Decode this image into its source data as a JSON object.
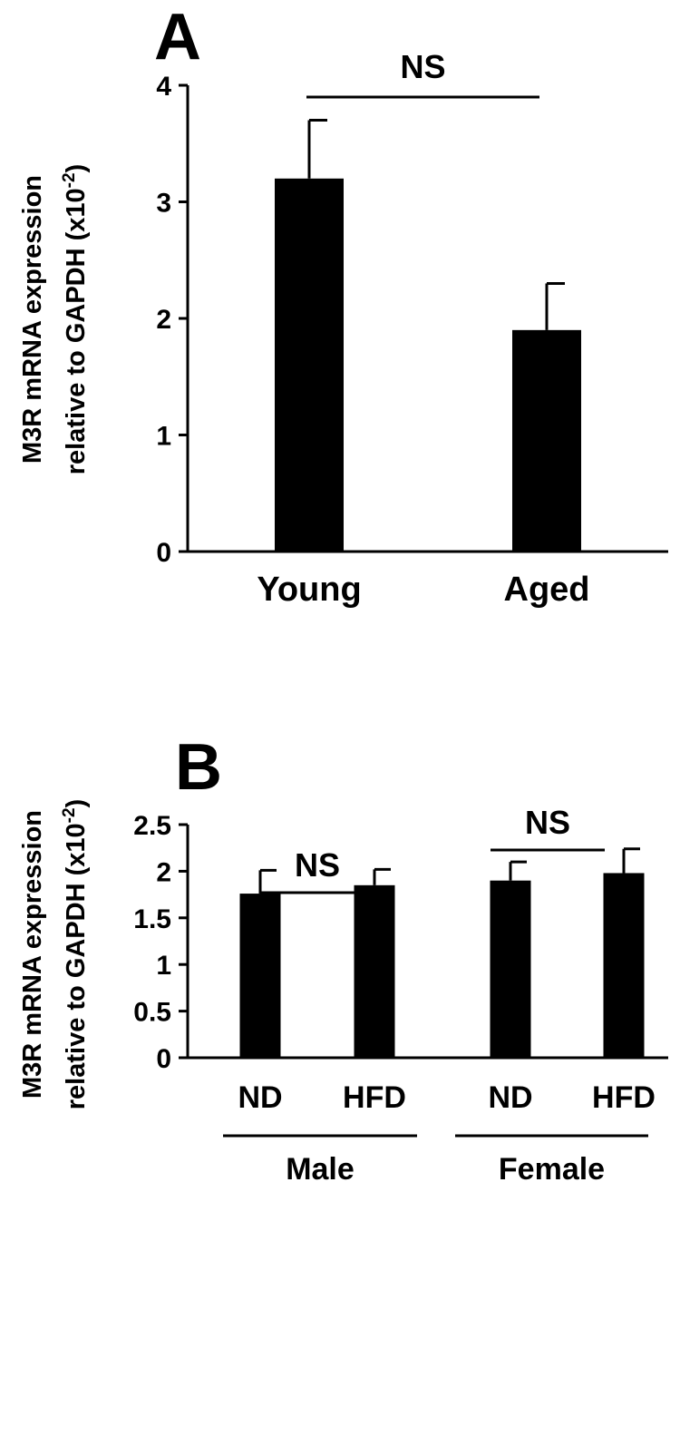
{
  "chart_data": [
    {
      "panel": "A",
      "type": "bar",
      "ylabel_line1": "M3R mRNA expression",
      "ylabel_line2": "relative to GAPDH (x10",
      "ylabel_sup": "-2",
      "ylabel_close": ")",
      "ylim": [
        0,
        4
      ],
      "yticks": [
        0,
        1,
        2,
        3,
        4
      ],
      "ytick_labels": [
        "0",
        "1",
        "2",
        "3",
        "4"
      ],
      "categories": [
        "Young",
        "Aged"
      ],
      "values": [
        3.2,
        1.9
      ],
      "errors": [
        0.5,
        0.4
      ],
      "bar_color": "#000000",
      "significance": [
        {
          "from": 0,
          "to": 1,
          "label": "NS"
        }
      ]
    },
    {
      "panel": "B",
      "type": "bar",
      "ylabel_line1": "M3R mRNA expression",
      "ylabel_line2": "relative to GAPDH (x10",
      "ylabel_sup": "-2",
      "ylabel_close": ")",
      "ylim": [
        0,
        2.5
      ],
      "yticks": [
        0,
        0.5,
        1,
        1.5,
        2,
        2.5
      ],
      "ytick_labels": [
        "0",
        "0.5",
        "1",
        "1.5",
        "2",
        "2.5"
      ],
      "categories": [
        "ND",
        "HFD",
        "ND",
        "HFD"
      ],
      "values": [
        1.76,
        1.85,
        1.9,
        1.98
      ],
      "errors": [
        0.25,
        0.17,
        0.2,
        0.26
      ],
      "bar_color": "#000000",
      "groups": [
        {
          "label": "Male",
          "members": [
            0,
            1
          ]
        },
        {
          "label": "Female",
          "members": [
            2,
            3
          ]
        }
      ],
      "significance": [
        {
          "from": 0,
          "to": 1,
          "label": "NS"
        },
        {
          "from": 2,
          "to": 3,
          "label": "NS"
        }
      ]
    }
  ]
}
